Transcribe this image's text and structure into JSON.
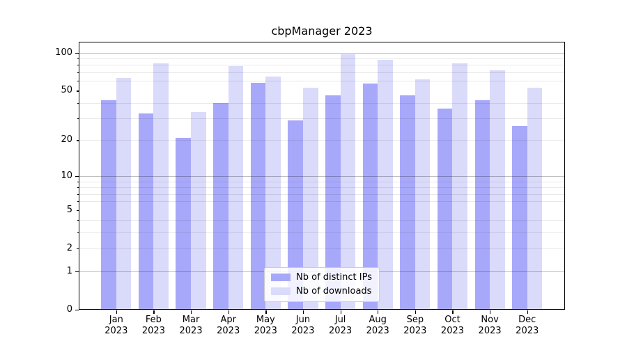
{
  "chart_data": {
    "type": "bar",
    "title": "cbpManager 2023",
    "categories": [
      "Jan 2023",
      "Feb 2023",
      "Mar 2023",
      "Apr 2023",
      "May 2023",
      "Jun 2023",
      "Jul 2023",
      "Aug 2023",
      "Sep 2023",
      "Oct 2023",
      "Nov 2023",
      "Dec 2023"
    ],
    "x_months": [
      "Jan",
      "Feb",
      "Mar",
      "Apr",
      "May",
      "Jun",
      "Jul",
      "Aug",
      "Sep",
      "Oct",
      "Nov",
      "Dec"
    ],
    "x_year": "2023",
    "series": [
      {
        "name": "Nb of distinct IPs",
        "color": "#a8a8fa",
        "values": [
          42,
          33,
          21,
          40,
          58,
          29,
          46,
          57,
          46,
          36,
          42,
          26
        ]
      },
      {
        "name": "Nb of downloads",
        "color": "#dadafa",
        "values": [
          63,
          83,
          34,
          78,
          65,
          53,
          97,
          88,
          62,
          82,
          73,
          53
        ]
      }
    ],
    "y_axis": {
      "scale": "log1p",
      "ticks": [
        0,
        1,
        2,
        5,
        10,
        20,
        50,
        100
      ],
      "major_gridlines": [
        1,
        10,
        100
      ],
      "minor_gridlines": [
        2,
        3,
        4,
        6,
        7,
        8,
        9,
        20,
        30,
        40,
        60,
        70,
        80,
        90
      ],
      "range": [
        0,
        122
      ]
    },
    "legend_position": "lower center",
    "grid": true
  },
  "colors": {
    "major_grid": "rgba(0,0,0,0.25)",
    "minor_grid": "rgba(0,0,0,0.09)",
    "spine": "#000000"
  }
}
